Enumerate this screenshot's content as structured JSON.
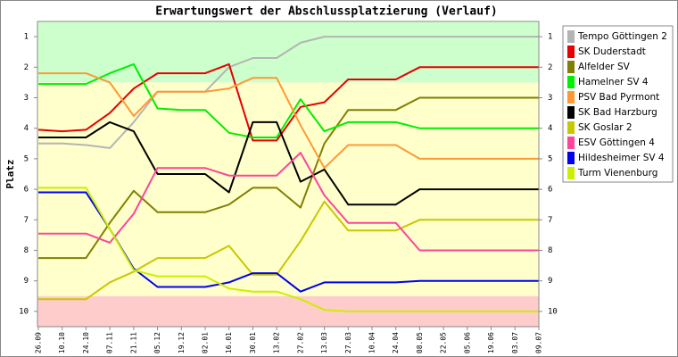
{
  "chart_data": {
    "type": "line",
    "title": "Erwartungswert der Abschlussplatzierung (Verlauf)",
    "y_label": "Platz",
    "categories": [
      "26.09",
      "10.10",
      "24.10",
      "07.11",
      "21.11",
      "05.12",
      "19.12",
      "02.01",
      "16.01",
      "30.01",
      "13.02",
      "27.02",
      "13.03",
      "27.03",
      "10.04",
      "24.04",
      "08.05",
      "22.05",
      "05.06",
      "19.06",
      "03.07",
      "09.07"
    ],
    "ylim": [
      0.5,
      10.5
    ],
    "y_inverted": true,
    "yticks": [
      1,
      2,
      3,
      4,
      5,
      6,
      7,
      8,
      9,
      10
    ],
    "bands": [
      {
        "from": 0.5,
        "to": 2.5,
        "color": "#ccffcc"
      },
      {
        "from": 2.5,
        "to": 9.5,
        "color": "#ffffcc"
      },
      {
        "from": 9.5,
        "to": 10.5,
        "color": "#ffcccc"
      }
    ],
    "series": [
      {
        "name": "Tempo Göttingen 2",
        "color": "#b4b4b4",
        "values": [
          4.5,
          4.5,
          4.55,
          4.65,
          3.8,
          2.8,
          2.8,
          2.8,
          2.0,
          1.7,
          1.7,
          1.2,
          1.0,
          1.0,
          1.0,
          1.0,
          1.0,
          1.0,
          1.0,
          1.0,
          1.0,
          1.0
        ]
      },
      {
        "name": "SK Duderstadt",
        "color": "#e60000",
        "values": [
          4.05,
          4.1,
          4.05,
          3.5,
          2.7,
          2.2,
          2.2,
          2.2,
          1.9,
          4.4,
          4.4,
          3.3,
          3.15,
          2.4,
          2.4,
          2.4,
          2.0,
          2.0,
          2.0,
          2.0,
          2.0,
          2.0
        ]
      },
      {
        "name": "Alfelder SV",
        "color": "#808000",
        "values": [
          8.25,
          8.25,
          8.25,
          7.1,
          6.05,
          6.75,
          6.75,
          6.75,
          6.5,
          5.95,
          5.95,
          6.6,
          4.5,
          3.4,
          3.4,
          3.4,
          3.0,
          3.0,
          3.0,
          3.0,
          3.0,
          3.0
        ]
      },
      {
        "name": "Hamelner SV 4",
        "color": "#00ee00",
        "values": [
          2.55,
          2.55,
          2.55,
          2.2,
          1.9,
          3.35,
          3.4,
          3.4,
          4.15,
          4.3,
          4.3,
          3.05,
          4.1,
          3.8,
          3.8,
          3.8,
          4.0,
          4.0,
          4.0,
          4.0,
          4.0,
          4.0
        ]
      },
      {
        "name": "PSV Bad Pyrmont",
        "color": "#ff9933",
        "values": [
          2.2,
          2.2,
          2.2,
          2.5,
          3.6,
          2.8,
          2.8,
          2.8,
          2.7,
          2.35,
          2.35,
          3.9,
          5.3,
          4.55,
          4.55,
          4.55,
          5.0,
          5.0,
          5.0,
          5.0,
          5.0,
          5.0
        ]
      },
      {
        "name": "SK Bad Harzburg",
        "color": "#000000",
        "values": [
          4.3,
          4.3,
          4.3,
          3.8,
          4.1,
          5.5,
          5.5,
          5.5,
          6.1,
          3.8,
          3.8,
          5.75,
          5.35,
          6.5,
          6.5,
          6.5,
          6.0,
          6.0,
          6.0,
          6.0,
          6.0,
          6.0
        ]
      },
      {
        "name": "SK Goslar 2",
        "color": "#c8c800",
        "values": [
          9.6,
          9.6,
          9.6,
          9.05,
          8.7,
          8.25,
          8.25,
          8.25,
          7.85,
          8.8,
          8.8,
          7.7,
          6.4,
          7.35,
          7.35,
          7.35,
          7.0,
          7.0,
          7.0,
          7.0,
          7.0,
          7.0
        ]
      },
      {
        "name": "ESV Göttingen 4",
        "color": "#ff4499",
        "values": [
          7.45,
          7.45,
          7.45,
          7.75,
          6.8,
          5.3,
          5.3,
          5.3,
          5.55,
          5.55,
          5.55,
          4.8,
          6.2,
          7.1,
          7.1,
          7.1,
          8.0,
          8.0,
          8.0,
          8.0,
          8.0,
          8.0
        ]
      },
      {
        "name": "Hildesheimer SV 4",
        "color": "#0000ee",
        "values": [
          6.1,
          6.1,
          6.1,
          7.3,
          8.6,
          9.2,
          9.2,
          9.2,
          9.05,
          8.75,
          8.75,
          9.35,
          9.05,
          9.05,
          9.05,
          9.05,
          9.0,
          9.0,
          9.0,
          9.0,
          9.0,
          9.0
        ]
      },
      {
        "name": "Turm Vienenburg",
        "color": "#ccee00",
        "values": [
          5.95,
          5.95,
          5.95,
          7.3,
          8.65,
          8.85,
          8.85,
          8.85,
          9.25,
          9.35,
          9.35,
          9.6,
          9.95,
          10.0,
          10.0,
          10.0,
          10.0,
          10.0,
          10.0,
          10.0,
          10.0,
          10.0
        ]
      }
    ]
  }
}
